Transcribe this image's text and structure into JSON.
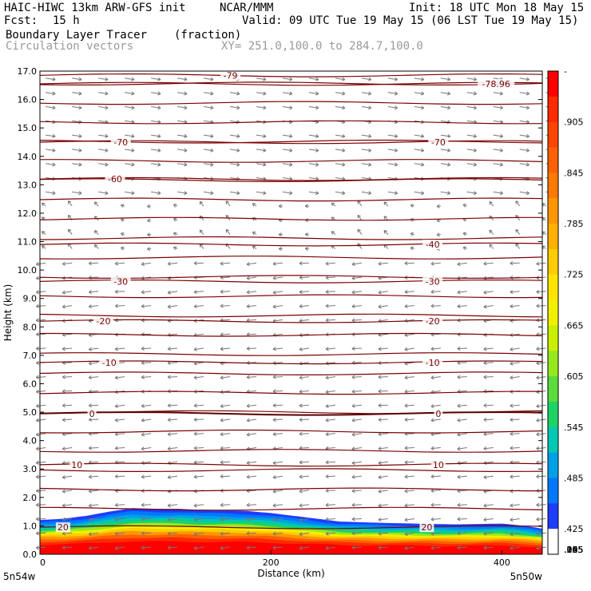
{
  "header": {
    "model": "HAIC-HIWC 13km ARW-GFS init",
    "org": "NCAR/MMM",
    "init": "Init: 18 UTC Mon 18 May 15",
    "fcst_label": "Fcst:",
    "fcst_value": "15 h",
    "valid": "Valid: 09 UTC Tue 19 May 15 (06 LST Tue 19 May 15)",
    "field": "Boundary Layer Tracer",
    "field_units": "(fraction)",
    "vectors": "Circulation vectors",
    "xy": "XY= 251.0,100.0 to 284.7,100.0"
  },
  "chart_data": {
    "type": "heatmap",
    "ylabel": "Height (km)",
    "xlabel": "Distance (km)",
    "xlim": [
      0,
      435
    ],
    "ylim": [
      0,
      17
    ],
    "yticks": [
      "0.0",
      "1.0",
      "2.0",
      "3.0",
      "4.0",
      "5.0",
      "6.0",
      "7.0",
      "8.0",
      "9.0",
      "10.0",
      "11.0",
      "12.0",
      "13.0",
      "14.0",
      "15.0",
      "16.0",
      "17.0"
    ],
    "xticks": [
      {
        "v": 0,
        "label": "0"
      },
      {
        "v": 200,
        "label": "200"
      },
      {
        "v": 400,
        "label": "400"
      }
    ],
    "endpoints": {
      "left": "5n54w",
      "right": "5n50w"
    },
    "colorbar": {
      "labels": [
        "-",
        ".905",
        ".845",
        ".785",
        ".725",
        ".665",
        ".605",
        ".545",
        ".485",
        ".425",
        ".365",
        ".305",
        ".245",
        ".185",
        ".125",
        ".065",
        ".005"
      ],
      "colors": [
        "#ff0000",
        "#ff2a00",
        "#ff4400",
        "#ff6000",
        "#ff7a00",
        "#ff9600",
        "#ffb000",
        "#ffcc00",
        "#ffe400",
        "#f0f000",
        "#c8f000",
        "#96e81e",
        "#5adc3c",
        "#1ed264",
        "#00c8b4",
        "#00a0e6",
        "#0078ff",
        "#1e3cff",
        "#ffffff"
      ]
    },
    "tracer_top_km": [
      [
        0,
        1.2
      ],
      [
        20,
        1.25
      ],
      [
        40,
        1.35
      ],
      [
        60,
        1.5
      ],
      [
        80,
        1.62
      ],
      [
        100,
        1.6
      ],
      [
        120,
        1.6
      ],
      [
        140,
        1.55
      ],
      [
        160,
        1.55
      ],
      [
        180,
        1.52
      ],
      [
        200,
        1.45
      ],
      [
        230,
        1.3
      ],
      [
        260,
        1.15
      ],
      [
        300,
        1.1
      ],
      [
        360,
        1.05
      ],
      [
        400,
        1.08
      ],
      [
        420,
        1.0
      ],
      [
        435,
        0.9
      ]
    ],
    "contours": [
      {
        "value": "-79",
        "z": 16.85,
        "label_x": [
          165
        ]
      },
      {
        "value": "-78.96",
        "z": 16.55,
        "label_x": [
          395
        ]
      },
      {
        "value": "-70",
        "z": 14.5,
        "label_x": [
          70,
          345
        ]
      },
      {
        "value": "-60",
        "z": 13.2,
        "label_x": [
          65
        ]
      },
      {
        "value": "-40",
        "z": 10.9,
        "label_x": [
          340
        ]
      },
      {
        "value": "-30",
        "z": 9.6,
        "label_x": [
          70,
          340
        ]
      },
      {
        "value": "-20",
        "z": 8.2,
        "label_x": [
          55,
          340
        ]
      },
      {
        "value": "-10",
        "z": 6.75,
        "label_x": [
          60,
          340
        ]
      },
      {
        "value": "0",
        "z": 4.95,
        "label_x": [
          45,
          345
        ]
      },
      {
        "value": "10",
        "z": 3.15,
        "label_x": [
          32,
          345
        ]
      },
      {
        "value": "20",
        "z": 0.95,
        "label_x": [
          20,
          335
        ]
      }
    ]
  }
}
